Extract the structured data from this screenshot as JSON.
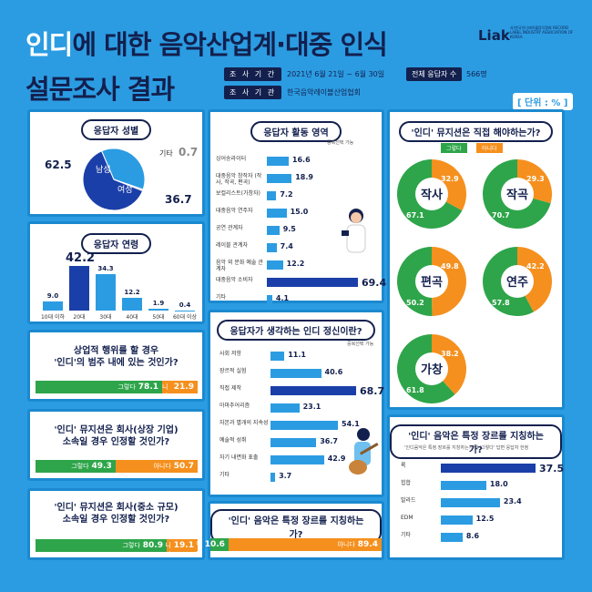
{
  "header": {
    "title_a": "인디",
    "title_b": "에 대한 음악산업계·대중 인식",
    "title_line2": "설문조사 결과",
    "logo": "Liak",
    "logo_sub": "사)한국인디레이블음악협회 RECORD LABEL INDUSTRY ASSOCIATION OF KOREA",
    "period_label": "조 사 기 간",
    "period": "2021년 6월 21일 ~ 6월 30일",
    "total_label": "전체 응답자 수",
    "total": "566명",
    "org_label": "조 사 기 관",
    "org": "한국음악레이블산업협회",
    "unit": "[ 단위 : % ]"
  },
  "colors": {
    "bg": "#2b9ce2",
    "navy": "#13204e",
    "green": "#2ea54a",
    "orange": "#f5901e",
    "dark_bar": "#1b3fa8"
  },
  "gender": {
    "title": "응답자 성별",
    "male_label": "남성",
    "female_label": "여성",
    "other_label": "기타"
  },
  "age": {
    "title": "응답자 연령"
  },
  "activity": {
    "title": "응답자 활동 영역",
    "note": "중복선택 가능"
  },
  "spirit": {
    "title": "응답자가 생각하는 인디 정신이란?",
    "note": "중복선택 가능"
  },
  "self_made": {
    "title": "'인디' 뮤지션은 직접 해야하는가?",
    "yes_label": "그렇다",
    "no_label": "아니다"
  },
  "commercial": {
    "title_l1": "상업적 행위를 할 경우",
    "title_l2": "'인디'의 범주 내에 있는 것인가?",
    "yes_label": "그렇다",
    "yes": "78.1",
    "no_label": "아니다",
    "no": "21.9"
  },
  "big_company": {
    "title_l1": "'인디' 뮤지션은 회사(상장 기업)",
    "title_l2": "소속일 경우 인정할 것인가?",
    "yes_label": "그렇다",
    "yes": "49.3",
    "no_label": "아니다",
    "no": "50.7"
  },
  "small_company": {
    "title_l1": "'인디' 뮤지션은 회사(중소 규모)",
    "title_l2": "소속일 경우 인정할 것인가?",
    "yes_label": "그렇다",
    "yes": "80.9",
    "no_label": "아니다",
    "no": "19.1"
  },
  "genre_q": {
    "title": "'인디' 음악은 특정 장르를 지칭하는가?",
    "yes_label": "그렇다",
    "yes": "10.6",
    "no_label": "아니다",
    "no": "89.4"
  },
  "genre_which": {
    "title": "'인디' 음악은 특정 장르를 지칭하는가?",
    "note": "'인디음악은 특정 장르를 지칭하는가'에 '그렇다' 답변 응답자 한정"
  },
  "chart_data": [
    {
      "type": "pie",
      "title": "응답자 성별",
      "categories": [
        "남성",
        "여성",
        "기타"
      ],
      "values": [
        62.5,
        36.7,
        0.7
      ]
    },
    {
      "type": "bar",
      "title": "응답자 연령",
      "categories": [
        "10대 이하",
        "20대",
        "30대",
        "40대",
        "50대",
        "60대 이상"
      ],
      "values": [
        9.0,
        42.2,
        34.3,
        12.2,
        1.9,
        0.4
      ]
    },
    {
      "type": "bar",
      "title": "응답자 활동 영역",
      "orientation": "horizontal",
      "categories": [
        "싱어송라이터",
        "대중음악 창작자 (작사, 작곡, 편곡)",
        "보컬리스트(가창자)",
        "대중음악 연주자",
        "공연 관계자",
        "레이블 관계자",
        "음악 외 문화 예술 관계자",
        "대중음악 소비자",
        "기타"
      ],
      "values": [
        16.6,
        18.9,
        7.2,
        15.0,
        9.5,
        7.4,
        12.2,
        69.4,
        4.1
      ]
    },
    {
      "type": "bar",
      "title": "응답자가 생각하는 인디 정신이란?",
      "orientation": "horizontal",
      "categories": [
        "사회 저항",
        "장르적 실험",
        "직접 제작",
        "아마추어리즘",
        "자본과 별개의 지속성",
        "예술적 성취",
        "자기 내면화 표출",
        "기타"
      ],
      "values": [
        11.1,
        40.6,
        68.7,
        23.1,
        54.1,
        36.7,
        42.9,
        3.7
      ]
    },
    {
      "type": "pie",
      "title": "'인디' 뮤지션은 직접 해야하는가?",
      "categories": [
        "작사",
        "작곡",
        "편곡",
        "연주",
        "가창"
      ],
      "series": [
        {
          "name": "그렇다",
          "values": [
            67.1,
            70.7,
            50.2,
            57.8,
            61.8
          ]
        },
        {
          "name": "아니다",
          "values": [
            32.9,
            29.3,
            49.8,
            42.2,
            38.2
          ]
        }
      ]
    },
    {
      "type": "bar",
      "title": "상업적 행위를 할 경우 '인디'의 범주 내에 있는 것인가?",
      "orientation": "horizontal",
      "stacked": true,
      "categories": [
        "그렇다",
        "아니다"
      ],
      "values": [
        78.1,
        21.9
      ]
    },
    {
      "type": "bar",
      "title": "'인디' 뮤지션은 회사(상장 기업) 소속일 경우 인정할 것인가?",
      "orientation": "horizontal",
      "stacked": true,
      "categories": [
        "그렇다",
        "아니다"
      ],
      "values": [
        49.3,
        50.7
      ]
    },
    {
      "type": "bar",
      "title": "'인디' 뮤지션은 회사(중소 규모) 소속일 경우 인정할 것인가?",
      "orientation": "horizontal",
      "stacked": true,
      "categories": [
        "그렇다",
        "아니다"
      ],
      "values": [
        80.9,
        19.1
      ]
    },
    {
      "type": "bar",
      "title": "'인디' 음악은 특정 장르를 지칭하는가?",
      "orientation": "horizontal",
      "stacked": true,
      "categories": [
        "그렇다",
        "아니다"
      ],
      "values": [
        10.6,
        89.4
      ]
    },
    {
      "type": "bar",
      "title": "'인디' 음악은 특정 장르를 지칭하는가?",
      "orientation": "horizontal",
      "categories": [
        "록",
        "힙합",
        "발라드",
        "EDM",
        "기타"
      ],
      "values": [
        37.5,
        18.0,
        23.4,
        12.5,
        8.6
      ]
    }
  ]
}
